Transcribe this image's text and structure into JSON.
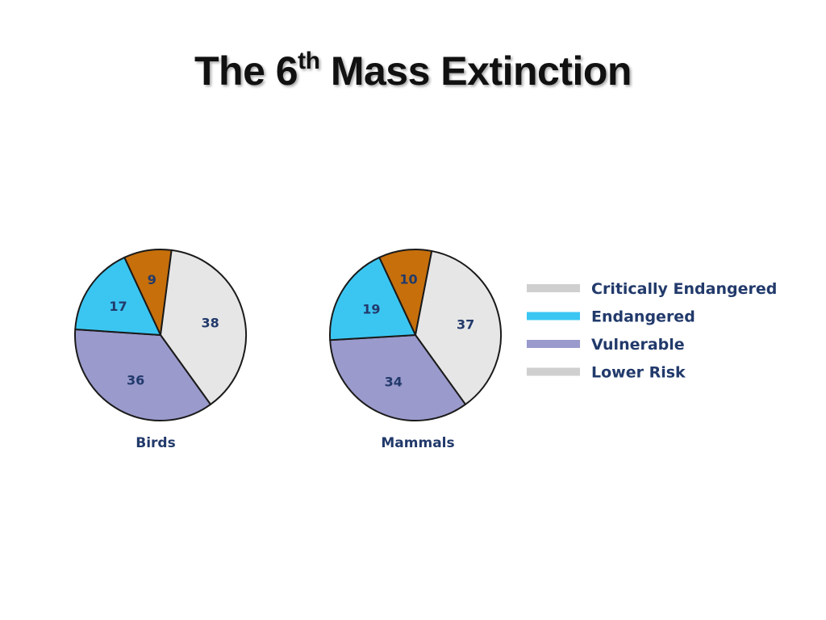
{
  "title": {
    "main_prefix": "The 6",
    "superscript": "th",
    "main_suffix": " Mass Extinction"
  },
  "colors": {
    "critically_endangered": "#c66f0b",
    "critically_endangered_legend": "#cfcfcf",
    "endangered": "#3bc6f2",
    "vulnerable": "#9a9acc",
    "lower_risk": "#e6e6e6",
    "lower_risk_legend": "#cfcfcf",
    "label_text": "#223a6b",
    "outline": "#1a1a1a"
  },
  "chart_data": [
    {
      "type": "pie",
      "title": "Birds",
      "slices": [
        {
          "label": "Critically Endangered",
          "value": 9
        },
        {
          "label": "Lower Risk",
          "value": 38
        },
        {
          "label": "Vulnerable",
          "value": 36
        },
        {
          "label": "Endangered",
          "value": 17
        }
      ]
    },
    {
      "type": "pie",
      "title": "Mammals",
      "slices": [
        {
          "label": "Critically Endangered",
          "value": 10
        },
        {
          "label": "Lower Risk",
          "value": 37
        },
        {
          "label": "Vulnerable",
          "value": 34
        },
        {
          "label": "Endangered",
          "value": 19
        }
      ]
    }
  ],
  "legend": {
    "placement": "right",
    "items": [
      {
        "label": "Critically Endangered",
        "color": "#cfcfcf"
      },
      {
        "label": "Endangered",
        "color": "#3bc6f2"
      },
      {
        "label": "Vulnerable",
        "color": "#9a9acc"
      },
      {
        "label": "Lower Risk",
        "color": "#cfcfcf"
      }
    ]
  }
}
